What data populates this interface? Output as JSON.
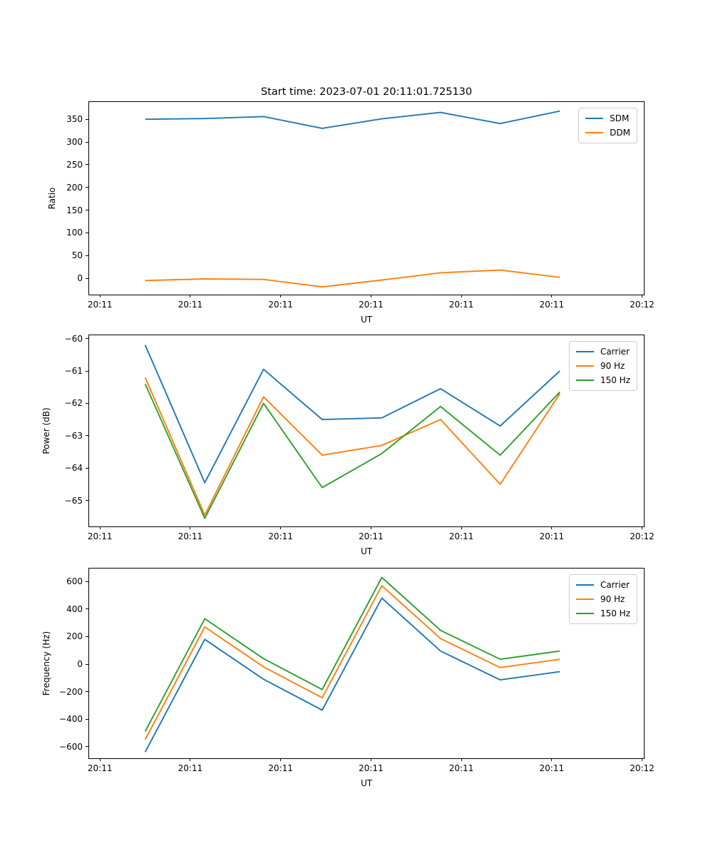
{
  "figure_title": "Start time: 2023-07-01 20:11:01.725130",
  "colors": {
    "blue": "#1f77b4",
    "orange": "#ff7f0e",
    "green": "#2ca02c",
    "spine": "#000000",
    "legend_border": "#cccccc"
  },
  "chart_data": [
    {
      "type": "line",
      "title": "Start time: 2023-07-01 20:11:01.725130",
      "ylabel": "Ratio",
      "xlabel": "UT",
      "ylim": [
        -36,
        388
      ],
      "yticks": [
        0,
        50,
        100,
        150,
        200,
        250,
        300,
        350
      ],
      "xlim_seconds": [
        -1.2,
        60.2
      ],
      "xtick_seconds": [
        0,
        10,
        20,
        30,
        40,
        50,
        60
      ],
      "xtick_labels": [
        "20:11",
        "20:11",
        "20:11",
        "20:11",
        "20:11",
        "20:11",
        "20:12"
      ],
      "x_seconds": [
        5.0,
        11.6,
        18.1,
        24.6,
        31.2,
        37.7,
        44.3,
        50.9
      ],
      "grid": false,
      "legend_position": "upper right",
      "series": [
        {
          "name": "SDM",
          "color": "#1f77b4",
          "values": [
            350,
            351.5,
            356,
            330,
            351,
            365,
            340.5,
            368
          ]
        },
        {
          "name": "DDM",
          "color": "#ff7f0e",
          "values": [
            -5,
            -1.5,
            -2.5,
            -19,
            -4,
            12,
            18,
            2
          ]
        }
      ]
    },
    {
      "type": "line",
      "title": "",
      "ylabel": "Power (dB)",
      "xlabel": "UT",
      "ylim": [
        -65.8,
        -59.9
      ],
      "yticks": [
        -65,
        -64,
        -63,
        -62,
        -61,
        -60
      ],
      "xlim_seconds": [
        -1.2,
        60.2
      ],
      "xtick_seconds": [
        0,
        10,
        20,
        30,
        40,
        50,
        60
      ],
      "xtick_labels": [
        "20:11",
        "20:11",
        "20:11",
        "20:11",
        "20:11",
        "20:11",
        "20:12"
      ],
      "x_seconds": [
        5.0,
        11.6,
        18.1,
        24.6,
        31.2,
        37.7,
        44.3,
        50.9
      ],
      "grid": false,
      "legend_position": "upper right",
      "series": [
        {
          "name": "Carrier",
          "color": "#1f77b4",
          "values": [
            -60.2,
            -64.45,
            -60.95,
            -62.5,
            -62.45,
            -61.55,
            -62.7,
            -61.0
          ]
        },
        {
          "name": "90 Hz",
          "color": "#ff7f0e",
          "values": [
            -61.2,
            -65.45,
            -61.8,
            -63.6,
            -63.3,
            -62.5,
            -64.5,
            -61.7
          ]
        },
        {
          "name": "150 Hz",
          "color": "#2ca02c",
          "values": [
            -61.4,
            -65.55,
            -62.0,
            -64.6,
            -63.55,
            -62.1,
            -63.6,
            -61.65
          ]
        }
      ]
    },
    {
      "type": "line",
      "title": "",
      "ylabel": "Frequency (Hz)",
      "xlabel": "UT",
      "ylim": [
        -685,
        695
      ],
      "yticks": [
        -600,
        -400,
        -200,
        0,
        200,
        400,
        600
      ],
      "xlim_seconds": [
        -1.2,
        60.2
      ],
      "xtick_seconds": [
        0,
        10,
        20,
        30,
        40,
        50,
        60
      ],
      "xtick_labels": [
        "20:11",
        "20:11",
        "20:11",
        "20:11",
        "20:11",
        "20:11",
        "20:12"
      ],
      "x_seconds": [
        5.0,
        11.6,
        18.1,
        24.6,
        31.2,
        37.7,
        44.3,
        50.9
      ],
      "grid": false,
      "legend_position": "upper right",
      "series": [
        {
          "name": "Carrier",
          "color": "#1f77b4",
          "values": [
            -640,
            180,
            -110,
            -335,
            480,
            95,
            -115,
            -55
          ]
        },
        {
          "name": "90 Hz",
          "color": "#ff7f0e",
          "values": [
            -550,
            270,
            -20,
            -245,
            570,
            185,
            -25,
            35
          ]
        },
        {
          "name": "150 Hz",
          "color": "#2ca02c",
          "values": [
            -490,
            330,
            40,
            -185,
            630,
            245,
            35,
            95
          ]
        }
      ]
    }
  ]
}
